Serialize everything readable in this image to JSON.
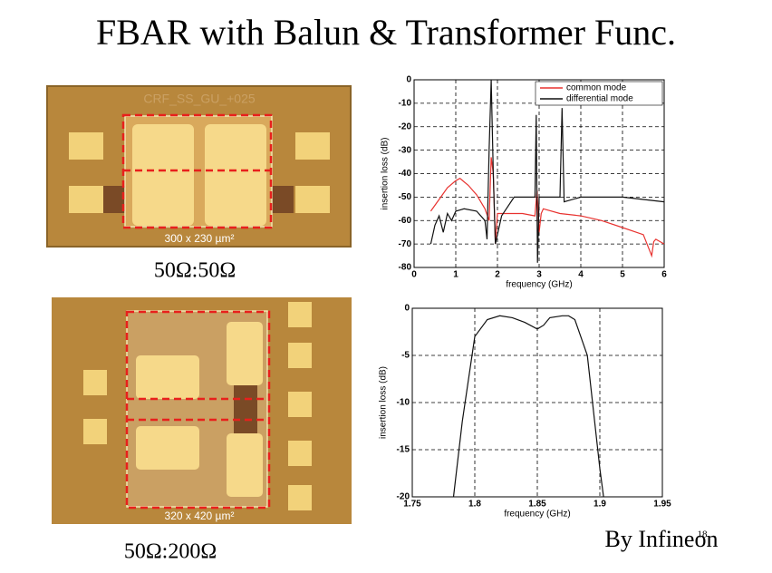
{
  "title": "FBAR with Balun & Transformer Func.",
  "images": [
    {
      "chip_label": "CRF_SS_GU_+025",
      "size": "300 x 230 µm²",
      "caption": "50Ω:50Ω"
    },
    {
      "size": "320 x 420 µm²",
      "caption": "50Ω:200Ω"
    }
  ],
  "credit": "By Infineon",
  "page_number": "18",
  "chart_data": [
    {
      "type": "line",
      "x_label": "frequency (GHz)",
      "y_label": "insertion loss (dB)",
      "xlim": [
        0,
        6
      ],
      "xticks": [
        0,
        1,
        2,
        3,
        4,
        5,
        6
      ],
      "ylim": [
        -80,
        0
      ],
      "yticks": [
        0,
        -10,
        -20,
        -30,
        -40,
        -50,
        -60,
        -70,
        -80
      ],
      "grid": true,
      "legend": "upper right",
      "series": [
        {
          "name": "common mode",
          "color": "#e8322f",
          "x": [
            0.4,
            0.6,
            0.8,
            1.0,
            1.1,
            1.3,
            1.5,
            1.7,
            1.8,
            1.85,
            1.9,
            1.95,
            2.0,
            2.3,
            2.6,
            2.9,
            2.95,
            3.0,
            3.05,
            3.1,
            3.5,
            4.0,
            4.5,
            5.0,
            5.5,
            5.7,
            5.75,
            5.8,
            6.0
          ],
          "values": [
            -56,
            -51,
            -46,
            -43,
            -42,
            -45,
            -49,
            -55,
            -60,
            -33,
            -40,
            -70,
            -57,
            -57,
            -57,
            -58,
            -47,
            -65,
            -57,
            -55,
            -57,
            -58,
            -60,
            -63,
            -66,
            -75,
            -69,
            -68,
            -70
          ]
        },
        {
          "name": "differential mode",
          "color": "#111111",
          "x": [
            0.4,
            0.5,
            0.6,
            0.7,
            0.8,
            0.9,
            1.0,
            1.2,
            1.5,
            1.7,
            1.75,
            1.8,
            1.85,
            1.9,
            1.95,
            2.1,
            2.4,
            2.8,
            2.9,
            2.93,
            2.96,
            3.0,
            3.5,
            3.55,
            3.6,
            4.0,
            5.0,
            5.5,
            6.0
          ],
          "values": [
            -70,
            -62,
            -58,
            -65,
            -57,
            -60,
            -56,
            -55,
            -56,
            -60,
            -68,
            -30,
            0,
            -40,
            -70,
            -58,
            -50,
            -50,
            -50,
            -15,
            -78,
            -50,
            -50,
            -12,
            -52,
            -50,
            -50,
            -51,
            -52
          ]
        }
      ]
    },
    {
      "type": "line",
      "x_label": "frequency (GHz)",
      "y_label": "insertion loss (dB)",
      "xlim": [
        1.75,
        1.95
      ],
      "xticks": [
        1.75,
        1.8,
        1.85,
        1.9,
        1.95
      ],
      "ylim": [
        -20,
        0
      ],
      "yticks": [
        0,
        -5,
        -10,
        -15,
        -20
      ],
      "grid": true,
      "series": [
        {
          "color": "#111111",
          "x": [
            1.783,
            1.79,
            1.8,
            1.81,
            1.82,
            1.83,
            1.84,
            1.85,
            1.855,
            1.86,
            1.87,
            1.875,
            1.88,
            1.89,
            1.9,
            1.903
          ],
          "values": [
            -20,
            -12,
            -3,
            -1.2,
            -0.8,
            -1,
            -1.5,
            -2.2,
            -1.8,
            -1,
            -0.8,
            -0.8,
            -1.2,
            -5,
            -17,
            -20
          ]
        }
      ]
    }
  ]
}
